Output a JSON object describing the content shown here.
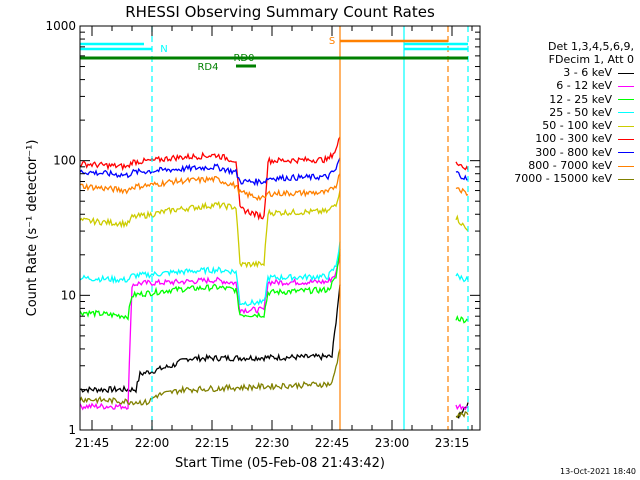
{
  "chart_data": {
    "type": "line",
    "title": "RHESSI Observing Summary Count Rates",
    "xlabel": "Start Time (05-Feb-08 21:43:42)",
    "ylabel": "Count Rate (s⁻¹ detector⁻¹)",
    "y_scale": "log",
    "xlim": [
      "21:42",
      "23:22"
    ],
    "ylim": [
      1,
      1000
    ],
    "x_ticks": [
      "21:45",
      "22:00",
      "22:15",
      "22:30",
      "22:45",
      "23:00",
      "23:15"
    ],
    "y_ticks": [
      "1",
      "10",
      "100",
      "1000"
    ],
    "grid": false,
    "legend_position": "right",
    "legend_header": [
      "Det 1,3,4,5,6,9,",
      "FDecim 1, Att 0"
    ],
    "series": [
      {
        "name": "3 - 6 keV",
        "color": "#000000",
        "x": [
          "21:42",
          "21:56",
          "21:57",
          "22:05",
          "22:09",
          "22:45",
          "22:47"
        ],
        "y": [
          2.0,
          2.0,
          2.6,
          3.0,
          3.4,
          3.5,
          12.0
        ],
        "x2": [
          "23:16",
          "23:19"
        ],
        "y2": [
          1.2,
          1.6
        ]
      },
      {
        "name": "6 - 12 keV",
        "color": "#ff00ff",
        "x": [
          "21:42",
          "21:54",
          "21:55",
          "21:57",
          "22:05",
          "22:16",
          "22:21",
          "22:22",
          "22:28",
          "22:29",
          "22:44",
          "22:46",
          "22:47"
        ],
        "y": [
          1.5,
          1.5,
          12.0,
          12.3,
          12.5,
          13.0,
          12.3,
          7.8,
          7.8,
          12.5,
          12.6,
          14.5,
          20.0
        ],
        "x2": [
          "23:16",
          "23:19"
        ],
        "y2": [
          1.5,
          1.5
        ]
      },
      {
        "name": "12 - 25 keV",
        "color": "#00ff00",
        "x": [
          "21:42",
          "21:54",
          "21:55",
          "22:00",
          "22:05",
          "22:16",
          "22:21",
          "22:22",
          "22:28",
          "22:29",
          "22:44",
          "22:46",
          "22:47"
        ],
        "y": [
          7.5,
          7.0,
          10.0,
          10.5,
          11.0,
          11.5,
          11.0,
          7.2,
          7.2,
          10.5,
          11.0,
          13.5,
          22.0
        ],
        "x2": [
          "23:16",
          "23:19"
        ],
        "y2": [
          6.8,
          6.5
        ]
      },
      {
        "name": "25 - 50 keV",
        "color": "#00ffff",
        "x": [
          "21:42",
          "21:54",
          "21:55",
          "22:00",
          "22:05",
          "22:16",
          "22:21",
          "22:22",
          "22:28",
          "22:29",
          "22:44",
          "22:46",
          "22:47"
        ],
        "y": [
          13.5,
          13.0,
          14.0,
          14.3,
          14.8,
          15.5,
          15.0,
          8.8,
          8.8,
          13.5,
          13.8,
          16.5,
          25.0
        ],
        "x2": [
          "23:16",
          "23:19"
        ],
        "y2": [
          14.0,
          13.0
        ]
      },
      {
        "name": "50 - 100 keV",
        "color": "#cccc00",
        "x": [
          "21:42",
          "21:54",
          "21:55",
          "22:00",
          "22:05",
          "22:16",
          "22:21",
          "22:22",
          "22:28",
          "22:29",
          "22:44",
          "22:46",
          "22:47"
        ],
        "y": [
          36.0,
          34.0,
          38.0,
          40.0,
          43.0,
          47.0,
          45.0,
          17.0,
          17.0,
          41.0,
          42.0,
          48.0,
          60.0
        ],
        "x2": [
          "23:16",
          "23:19"
        ],
        "y2": [
          38.0,
          30.0
        ]
      },
      {
        "name": "100 - 300 keV",
        "color": "#ff0000",
        "x": [
          "21:42",
          "21:54",
          "21:55",
          "22:00",
          "22:05",
          "22:16",
          "22:21",
          "22:22",
          "22:28",
          "22:29",
          "22:44",
          "22:46",
          "22:47"
        ],
        "y": [
          95.0,
          90.0,
          98.0,
          100.0,
          105.0,
          110.0,
          100.0,
          44.0,
          38.0,
          100.0,
          102.0,
          120.0,
          150.0
        ],
        "x2": [
          "23:16",
          "23:19"
        ],
        "y2": [
          100.0,
          85.0
        ]
      },
      {
        "name": "300 - 800 keV",
        "color": "#0000ff",
        "x": [
          "21:42",
          "21:54",
          "21:55",
          "22:00",
          "22:05",
          "22:16",
          "22:21",
          "22:22",
          "22:28",
          "22:29",
          "22:44",
          "22:46",
          "22:47"
        ],
        "y": [
          83.0,
          78.0,
          82.0,
          84.0,
          86.0,
          90.0,
          82.0,
          70.0,
          70.0,
          74.0,
          76.0,
          86.0,
          105.0
        ],
        "x2": [
          "23:16",
          "23:19"
        ],
        "y2": [
          82.0,
          72.0
        ]
      },
      {
        "name": "800 - 7000 keV",
        "color": "#ff8000",
        "x": [
          "21:42",
          "21:54",
          "21:55",
          "22:00",
          "22:05",
          "22:16",
          "22:21",
          "22:22",
          "22:28",
          "22:29",
          "22:44",
          "22:46",
          "22:47"
        ],
        "y": [
          65.0,
          60.0,
          64.0,
          66.0,
          70.0,
          73.0,
          65.0,
          58.0,
          52.0,
          57.0,
          58.0,
          66.0,
          80.0
        ],
        "x2": [
          "23:16",
          "23:19"
        ],
        "y2": [
          65.0,
          56.0
        ]
      },
      {
        "name": "7000 - 15000 keV",
        "color": "#808000",
        "x": [
          "21:42",
          "21:59",
          "22:01",
          "22:08",
          "22:09",
          "22:45",
          "22:47"
        ],
        "y": [
          1.7,
          1.6,
          1.8,
          2.0,
          2.0,
          2.2,
          4.0
        ],
        "x2": [
          "23:16",
          "23:19"
        ],
        "y2": [
          1.3,
          1.3
        ]
      }
    ],
    "annotations": [
      {
        "text": "N",
        "color": "#00ffff",
        "x": "22:00",
        "type": "flag-bar"
      },
      {
        "text": "S",
        "color": "#ff8000",
        "x": "22:47",
        "type": "flag-bar"
      },
      {
        "text": "RD0",
        "color": "#008000",
        "x": "22:20",
        "type": "flag-bar"
      },
      {
        "text": "RD4",
        "color": "#008000",
        "x": "22:17",
        "type": "flag-bar"
      }
    ],
    "flag_bars": {
      "n_top": [
        [
          "21:42",
          "21:58"
        ],
        [
          "23:03",
          "23:19"
        ]
      ],
      "n_bottom": [
        [
          "21:42",
          "22:00"
        ],
        [
          "23:03",
          "23:19"
        ]
      ],
      "s": [
        [
          "22:47",
          "23:14"
        ]
      ],
      "rd0": [
        [
          "21:42",
          "23:19"
        ]
      ],
      "rd4": [
        [
          "22:21",
          "22:26"
        ]
      ]
    },
    "vlines": [
      {
        "x": "22:00",
        "color": "#00ffff",
        "dashed": true
      },
      {
        "x": "22:47",
        "color": "#ff8000",
        "dashed": false
      },
      {
        "x": "23:03",
        "color": "#00ffff",
        "dashed": false
      },
      {
        "x": "23:14",
        "color": "#ff8000",
        "dashed": true
      },
      {
        "x": "23:19",
        "color": "#00ffff",
        "dashed": true
      }
    ]
  },
  "footer": {
    "timestamp": "13-Oct-2021 18:40"
  }
}
